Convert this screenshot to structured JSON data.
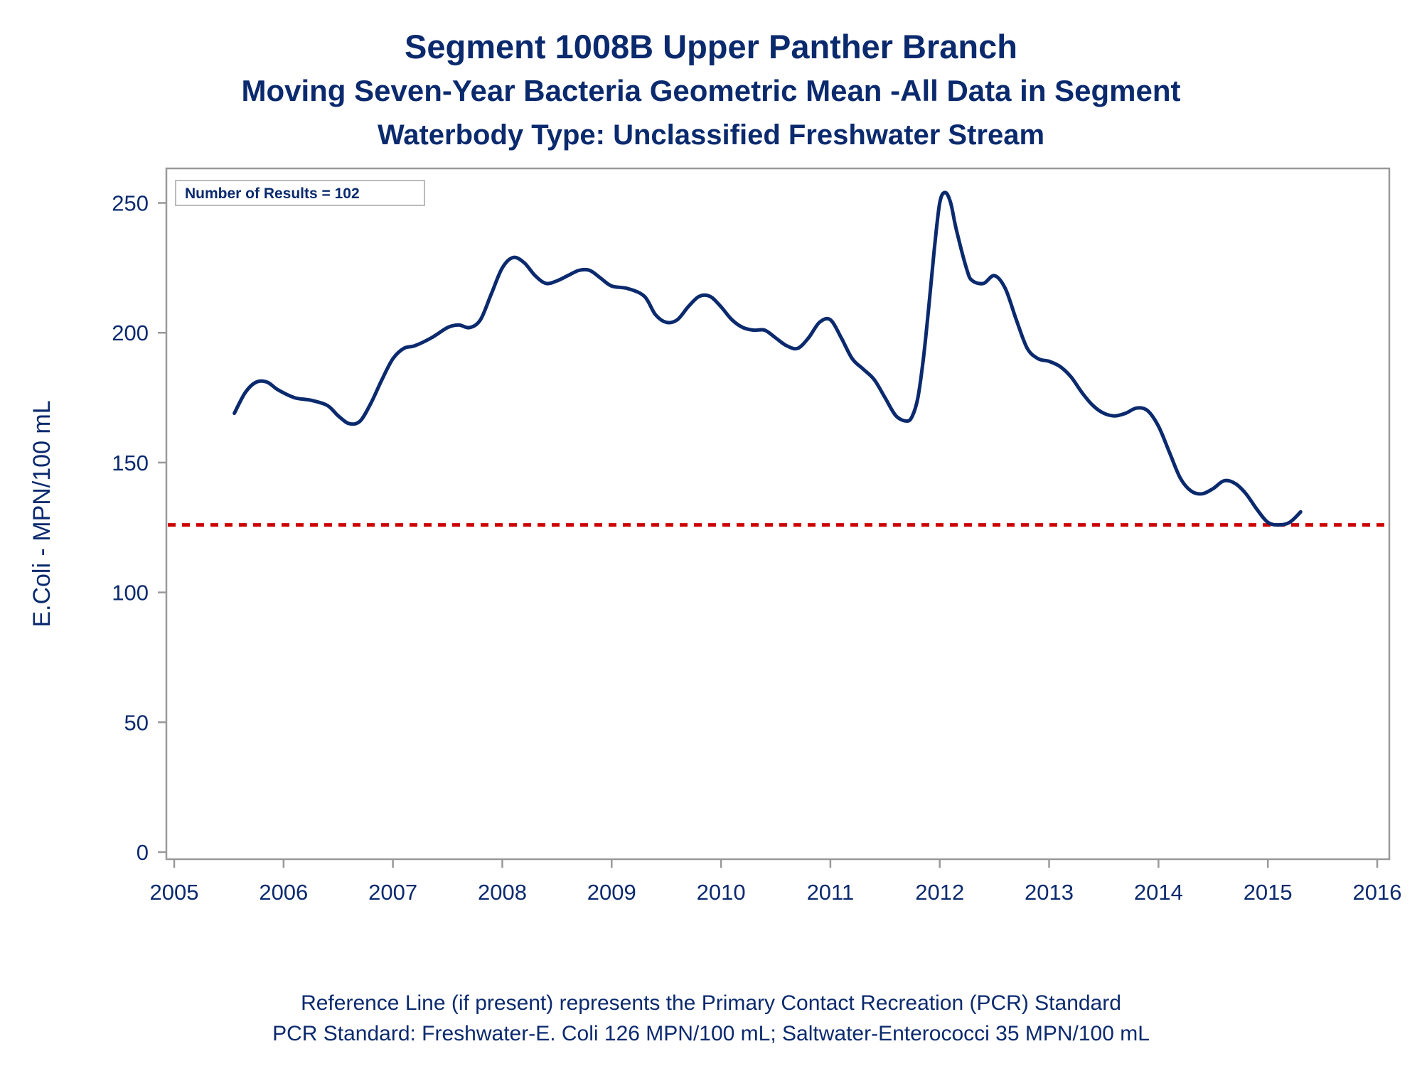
{
  "title": "Segment 1008B   Upper Panther Branch",
  "subtitle": "Moving Seven-Year Bacteria Geometric Mean -All Data in Segment",
  "subtitle2": "Waterbody Type: Unclassified Freshwater Stream",
  "footnote1": "Reference Line (if present) represents the Primary Contact Recreation (PCR) Standard",
  "footnote2": "PCR Standard: Freshwater-E. Coli 126 MPN/100 mL; Saltwater-Enterococci 35 MPN/100 mL",
  "colors": {
    "text": "#0b2a6e",
    "line": "#0b2a6e",
    "reference": "#cc0000",
    "frame": "#999999"
  },
  "chart_data": {
    "type": "line",
    "ylabel": "E.Coli - MPN/100 mL",
    "xlabel": "",
    "xlim": [
      2005,
      2016
    ],
    "ylim": [
      0,
      260
    ],
    "xticks": [
      2005,
      2006,
      2007,
      2008,
      2009,
      2010,
      2011,
      2012,
      2013,
      2014,
      2015,
      2016
    ],
    "yticks": [
      0,
      50,
      100,
      150,
      200,
      250
    ],
    "grid": false,
    "inset_label": "Number of Results = 102",
    "reference_line": {
      "y": 126,
      "style": "dashed"
    },
    "series": [
      {
        "x": [
          2005.55,
          2005.65,
          2005.75,
          2005.85,
          2005.95,
          2006.1,
          2006.25,
          2006.4,
          2006.5,
          2006.6,
          2006.7,
          2006.8,
          2006.9,
          2007.0,
          2007.1,
          2007.2,
          2007.35,
          2007.5,
          2007.6,
          2007.7,
          2007.8,
          2007.9,
          2008.0,
          2008.1,
          2008.2,
          2008.3,
          2008.4,
          2008.5,
          2008.6,
          2008.7,
          2008.8,
          2008.9,
          2009.0,
          2009.15,
          2009.3,
          2009.4,
          2009.5,
          2009.6,
          2009.7,
          2009.8,
          2009.9,
          2010.0,
          2010.1,
          2010.2,
          2010.3,
          2010.4,
          2010.5,
          2010.6,
          2010.7,
          2010.8,
          2010.9,
          2011.0,
          2011.1,
          2011.2,
          2011.3,
          2011.4,
          2011.5,
          2011.6,
          2011.7,
          2011.75,
          2011.8,
          2011.85,
          2011.9,
          2011.95,
          2012.0,
          2012.05,
          2012.1,
          2012.15,
          2012.25,
          2012.3,
          2012.4,
          2012.5,
          2012.6,
          2012.7,
          2012.8,
          2012.9,
          2013.0,
          2013.1,
          2013.2,
          2013.3,
          2013.4,
          2013.5,
          2013.6,
          2013.7,
          2013.8,
          2013.9,
          2014.0,
          2014.1,
          2014.2,
          2014.3,
          2014.4,
          2014.5,
          2014.6,
          2014.7,
          2014.8,
          2014.9,
          2015.0,
          2015.1,
          2015.2,
          2015.3
        ],
        "y": [
          169,
          177,
          181,
          181,
          178,
          175,
          174,
          172,
          168,
          165,
          166,
          173,
          182,
          190,
          194,
          195,
          198,
          202,
          203,
          202,
          205,
          215,
          225,
          229,
          227,
          222,
          219,
          220,
          222,
          224,
          224,
          221,
          218,
          217,
          214,
          207,
          204,
          205,
          210,
          214,
          214,
          210,
          205,
          202,
          201,
          201,
          198,
          195,
          194,
          198,
          204,
          205,
          198,
          190,
          186,
          182,
          175,
          168,
          166,
          168,
          175,
          190,
          210,
          232,
          250,
          254,
          250,
          240,
          224,
          220,
          219,
          222,
          217,
          205,
          194,
          190,
          189,
          187,
          183,
          177,
          172,
          169,
          168,
          169,
          171,
          170,
          164,
          154,
          144,
          139,
          138,
          140,
          143,
          142,
          138,
          132,
          127,
          126,
          127,
          131
        ]
      }
    ]
  }
}
